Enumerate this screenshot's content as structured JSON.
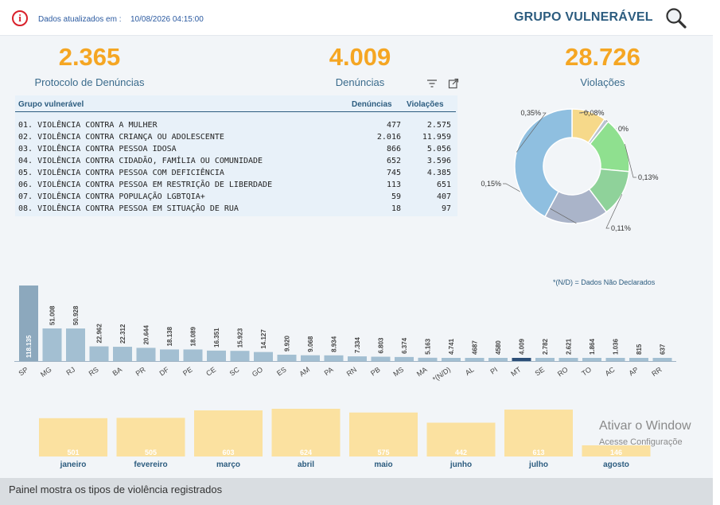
{
  "header": {
    "update_label": "Dados atualizados em :",
    "update_value": "10/08/2026 04:15:00",
    "title": "GRUPO VULNERÁVEL"
  },
  "kpis": [
    {
      "value": "2.365",
      "label": "Protocolo de Denúncias"
    },
    {
      "value": "4.009",
      "label": "Denúncias"
    },
    {
      "value": "28.726",
      "label": "Violações"
    }
  ],
  "table": {
    "headers": [
      "Grupo vulnerável",
      "Denúncias",
      "Violações"
    ],
    "rows": [
      [
        "01. VIOLÊNCIA CONTRA A MULHER",
        "477",
        "2.575"
      ],
      [
        "02. VIOLÊNCIA CONTRA CRIANÇA OU ADOLESCENTE",
        "2.016",
        "11.959"
      ],
      [
        "03. VIOLÊNCIA CONTRA PESSOA IDOSA",
        "866",
        "5.056"
      ],
      [
        "04. VIOLÊNCIA CONTRA CIDADÃO, FAMÍLIA OU COMUNIDADE",
        "652",
        "3.596"
      ],
      [
        "05. VIOLÊNCIA CONTRA PESSOA COM DEFICIÊNCIA",
        "745",
        "4.385"
      ],
      [
        "06. VIOLÊNCIA CONTRA PESSOA EM RESTRIÇÃO DE LIBERDADE",
        "113",
        "651"
      ],
      [
        "07. VIOLÊNCIA CONTRA POPULAÇÃO LGBTQIA+",
        "59",
        "407"
      ],
      [
        "08. VIOLÊNCIA CONTRA PESSOA EM SITUAÇÃO DE RUA",
        "18",
        "97"
      ]
    ]
  },
  "footnote": "*(N/D) = Dados Não Declarados",
  "watermark": {
    "line1": "Ativar o Window",
    "line2": "Acesse Configuraçõe"
  },
  "caption": "Painel mostra os tipos de violência registrados",
  "icons": {
    "info": "info-icon",
    "search": "search-icon",
    "filter": "filter-icon",
    "expand": "expand-icon"
  },
  "colors": {
    "kpi": "#f5a623",
    "title": "#2c5c7f",
    "alert": "#d9202a",
    "state_bar": "#a3bfd2",
    "state_bar_first": "#8ca8bd",
    "state_bar_highlight": "#2c4f78",
    "month_bar": "#fbe1a0"
  },
  "chart_data": [
    {
      "type": "pie",
      "subtype": "donut",
      "labels": [
        "0,08%",
        "0%",
        "0,13%",
        "0,11%",
        "0,15%",
        "0,35%"
      ],
      "values": [
        0.08,
        0.01,
        0.13,
        0.11,
        0.15,
        0.35
      ],
      "colors": [
        "#f6d98a",
        "#b9c2cf",
        "#8fe08f",
        "#8fd29a",
        "#aab4c9",
        "#8fbfe0"
      ]
    },
    {
      "type": "bar",
      "categories": [
        "SP",
        "MG",
        "RJ",
        "RS",
        "BA",
        "PR",
        "DF",
        "PE",
        "CE",
        "SC",
        "GO",
        "ES",
        "AM",
        "PA",
        "RN",
        "PB",
        "MS",
        "MA",
        "*(N/D)",
        "AL",
        "PI",
        "MT",
        "SE",
        "RO",
        "TO",
        "AC",
        "AP",
        "RR"
      ],
      "values": [
        118135,
        51008,
        50928,
        22962,
        22312,
        20644,
        18138,
        18089,
        16351,
        15923,
        14127,
        9920,
        9068,
        8934,
        7334,
        6803,
        6374,
        5163,
        4741,
        4687,
        4580,
        4009,
        2782,
        2621,
        1864,
        1036,
        815,
        637
      ],
      "value_labels": [
        "118.135",
        "51.008",
        "50.928",
        "22.962",
        "22.312",
        "20.644",
        "18.138",
        "18.089",
        "16.351",
        "15.923",
        "14.127",
        "9.920",
        "9.068",
        "8.934",
        "7.334",
        "6.803",
        "6.374",
        "5.163",
        "4.741",
        "4687",
        "4580",
        "4.009",
        "2.782",
        "2.621",
        "1.864",
        "1.036",
        "815",
        "637"
      ],
      "highlight": "MT"
    },
    {
      "type": "bar",
      "categories": [
        "janeiro",
        "fevereiro",
        "março",
        "abril",
        "maio",
        "junho",
        "julho",
        "agosto"
      ],
      "values": [
        501,
        505,
        603,
        624,
        575,
        442,
        613,
        146
      ],
      "value_labels": [
        "501",
        "505",
        "603",
        "624",
        "575",
        "442",
        "613",
        "146"
      ]
    }
  ]
}
